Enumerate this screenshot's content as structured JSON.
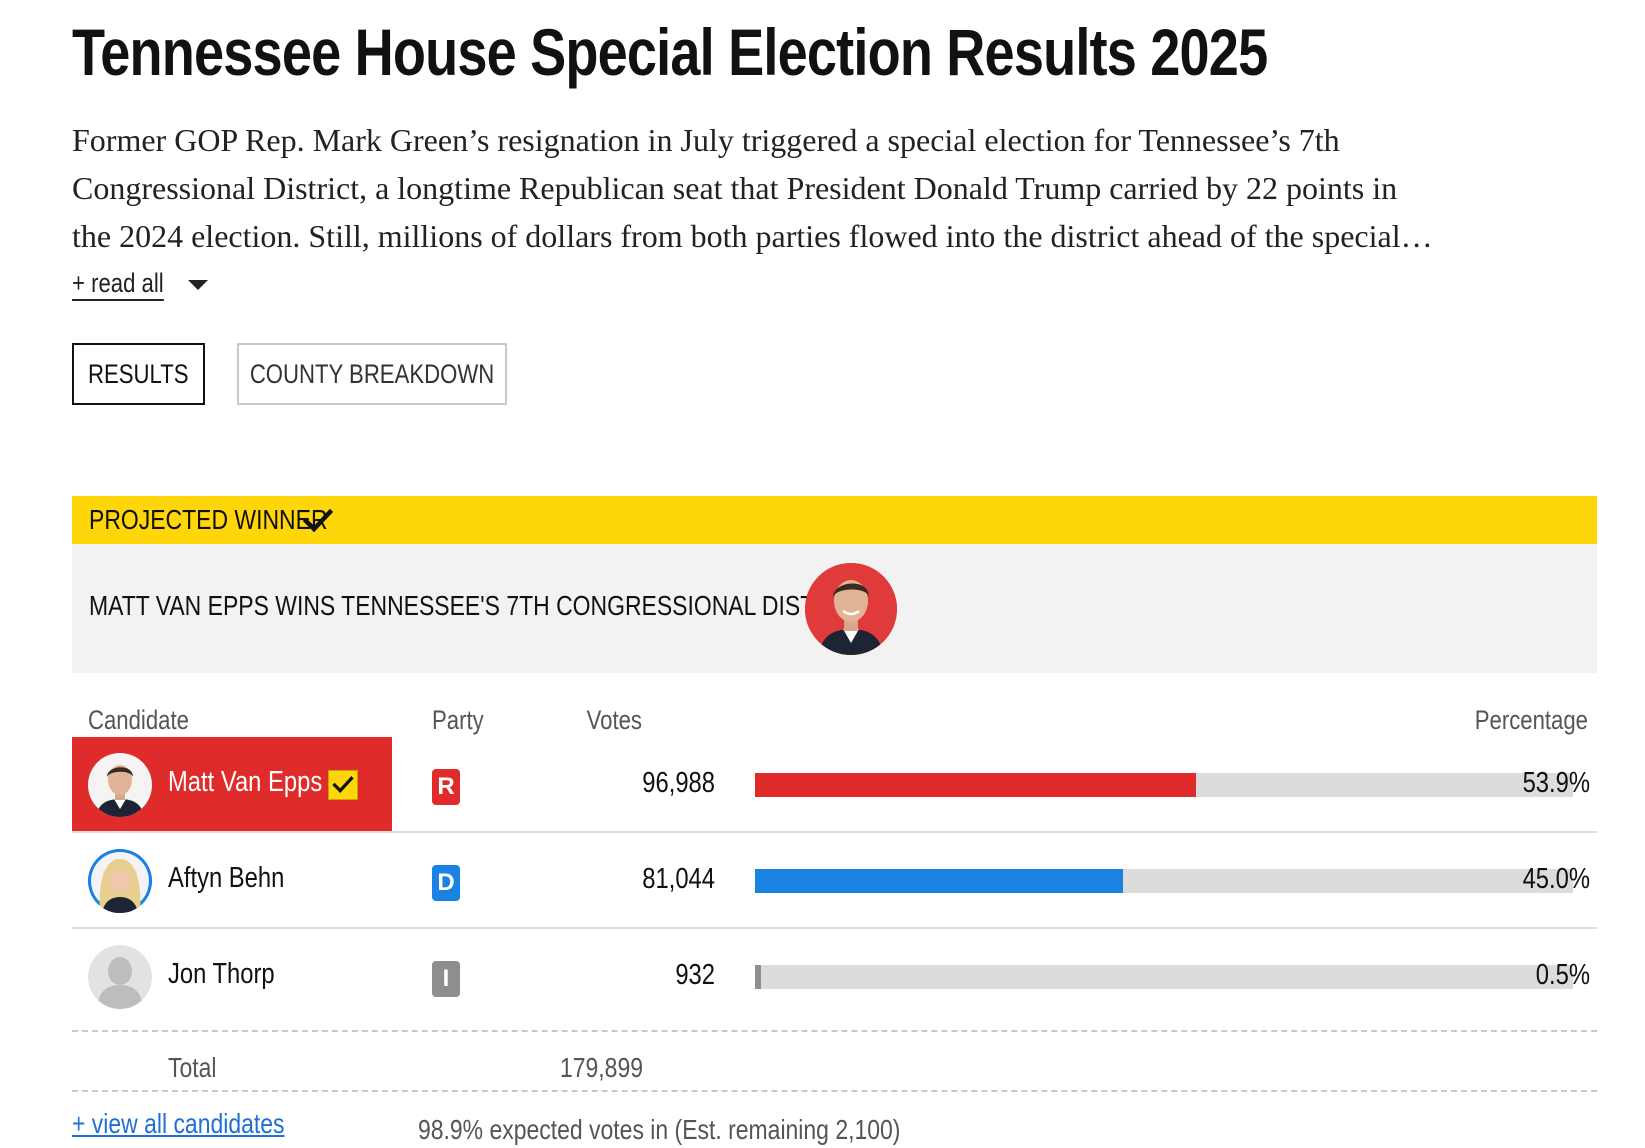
{
  "page": {
    "title": "Tennessee House Special Election Results 2025",
    "description_lines": [
      "Former GOP Rep. Mark Green’s resignation in July triggered a special election for Tennessee’s 7th",
      "Congressional District, a longtime Republican seat that President Donald Trump carried by 22 points in",
      "the 2024 election. Still, millions of dollars from both parties flowed into the district ahead of the special…"
    ],
    "read_all_label": "+ read all"
  },
  "tabs": [
    {
      "label": "RESULTS",
      "active": true
    },
    {
      "label": "COUNTY BREAKDOWN",
      "active": false
    }
  ],
  "winner": {
    "banner_label": "PROJECTED WINNER",
    "headline": "MATT VAN EPPS WINS TENNESSEE'S 7TH CONGRESSIONAL DISTRICT",
    "accent_color": "#ffd60a"
  },
  "table": {
    "headers": {
      "candidate": "Candidate",
      "party": "Party",
      "votes": "Votes",
      "percentage": "Percentage"
    },
    "rows": [
      {
        "name": "Matt Van Epps",
        "party": "R",
        "votes": "96,988",
        "percentage": "53.9%",
        "pct_value": 53.9,
        "winner": true,
        "party_color": "#e02b2b"
      },
      {
        "name": "Aftyn Behn",
        "party": "D",
        "votes": "81,044",
        "percentage": "45.0%",
        "pct_value": 45.0,
        "winner": false,
        "party_color": "#1a82e2"
      },
      {
        "name": "Jon Thorp",
        "party": "I",
        "votes": "932",
        "percentage": "0.5%",
        "pct_value": 0.5,
        "winner": false,
        "party_color": "#8e8e8e"
      }
    ],
    "total_label": "Total",
    "total_votes": "179,899"
  },
  "footer": {
    "view_all_label": "+ view all candidates",
    "expected_text": "98.9% expected votes in (Est. remaining 2,100)"
  },
  "icons": {
    "projected_check": "checkmark-icon",
    "winner_row_check": "checkmark-icon",
    "read_all_caret": "caret-down-icon"
  }
}
